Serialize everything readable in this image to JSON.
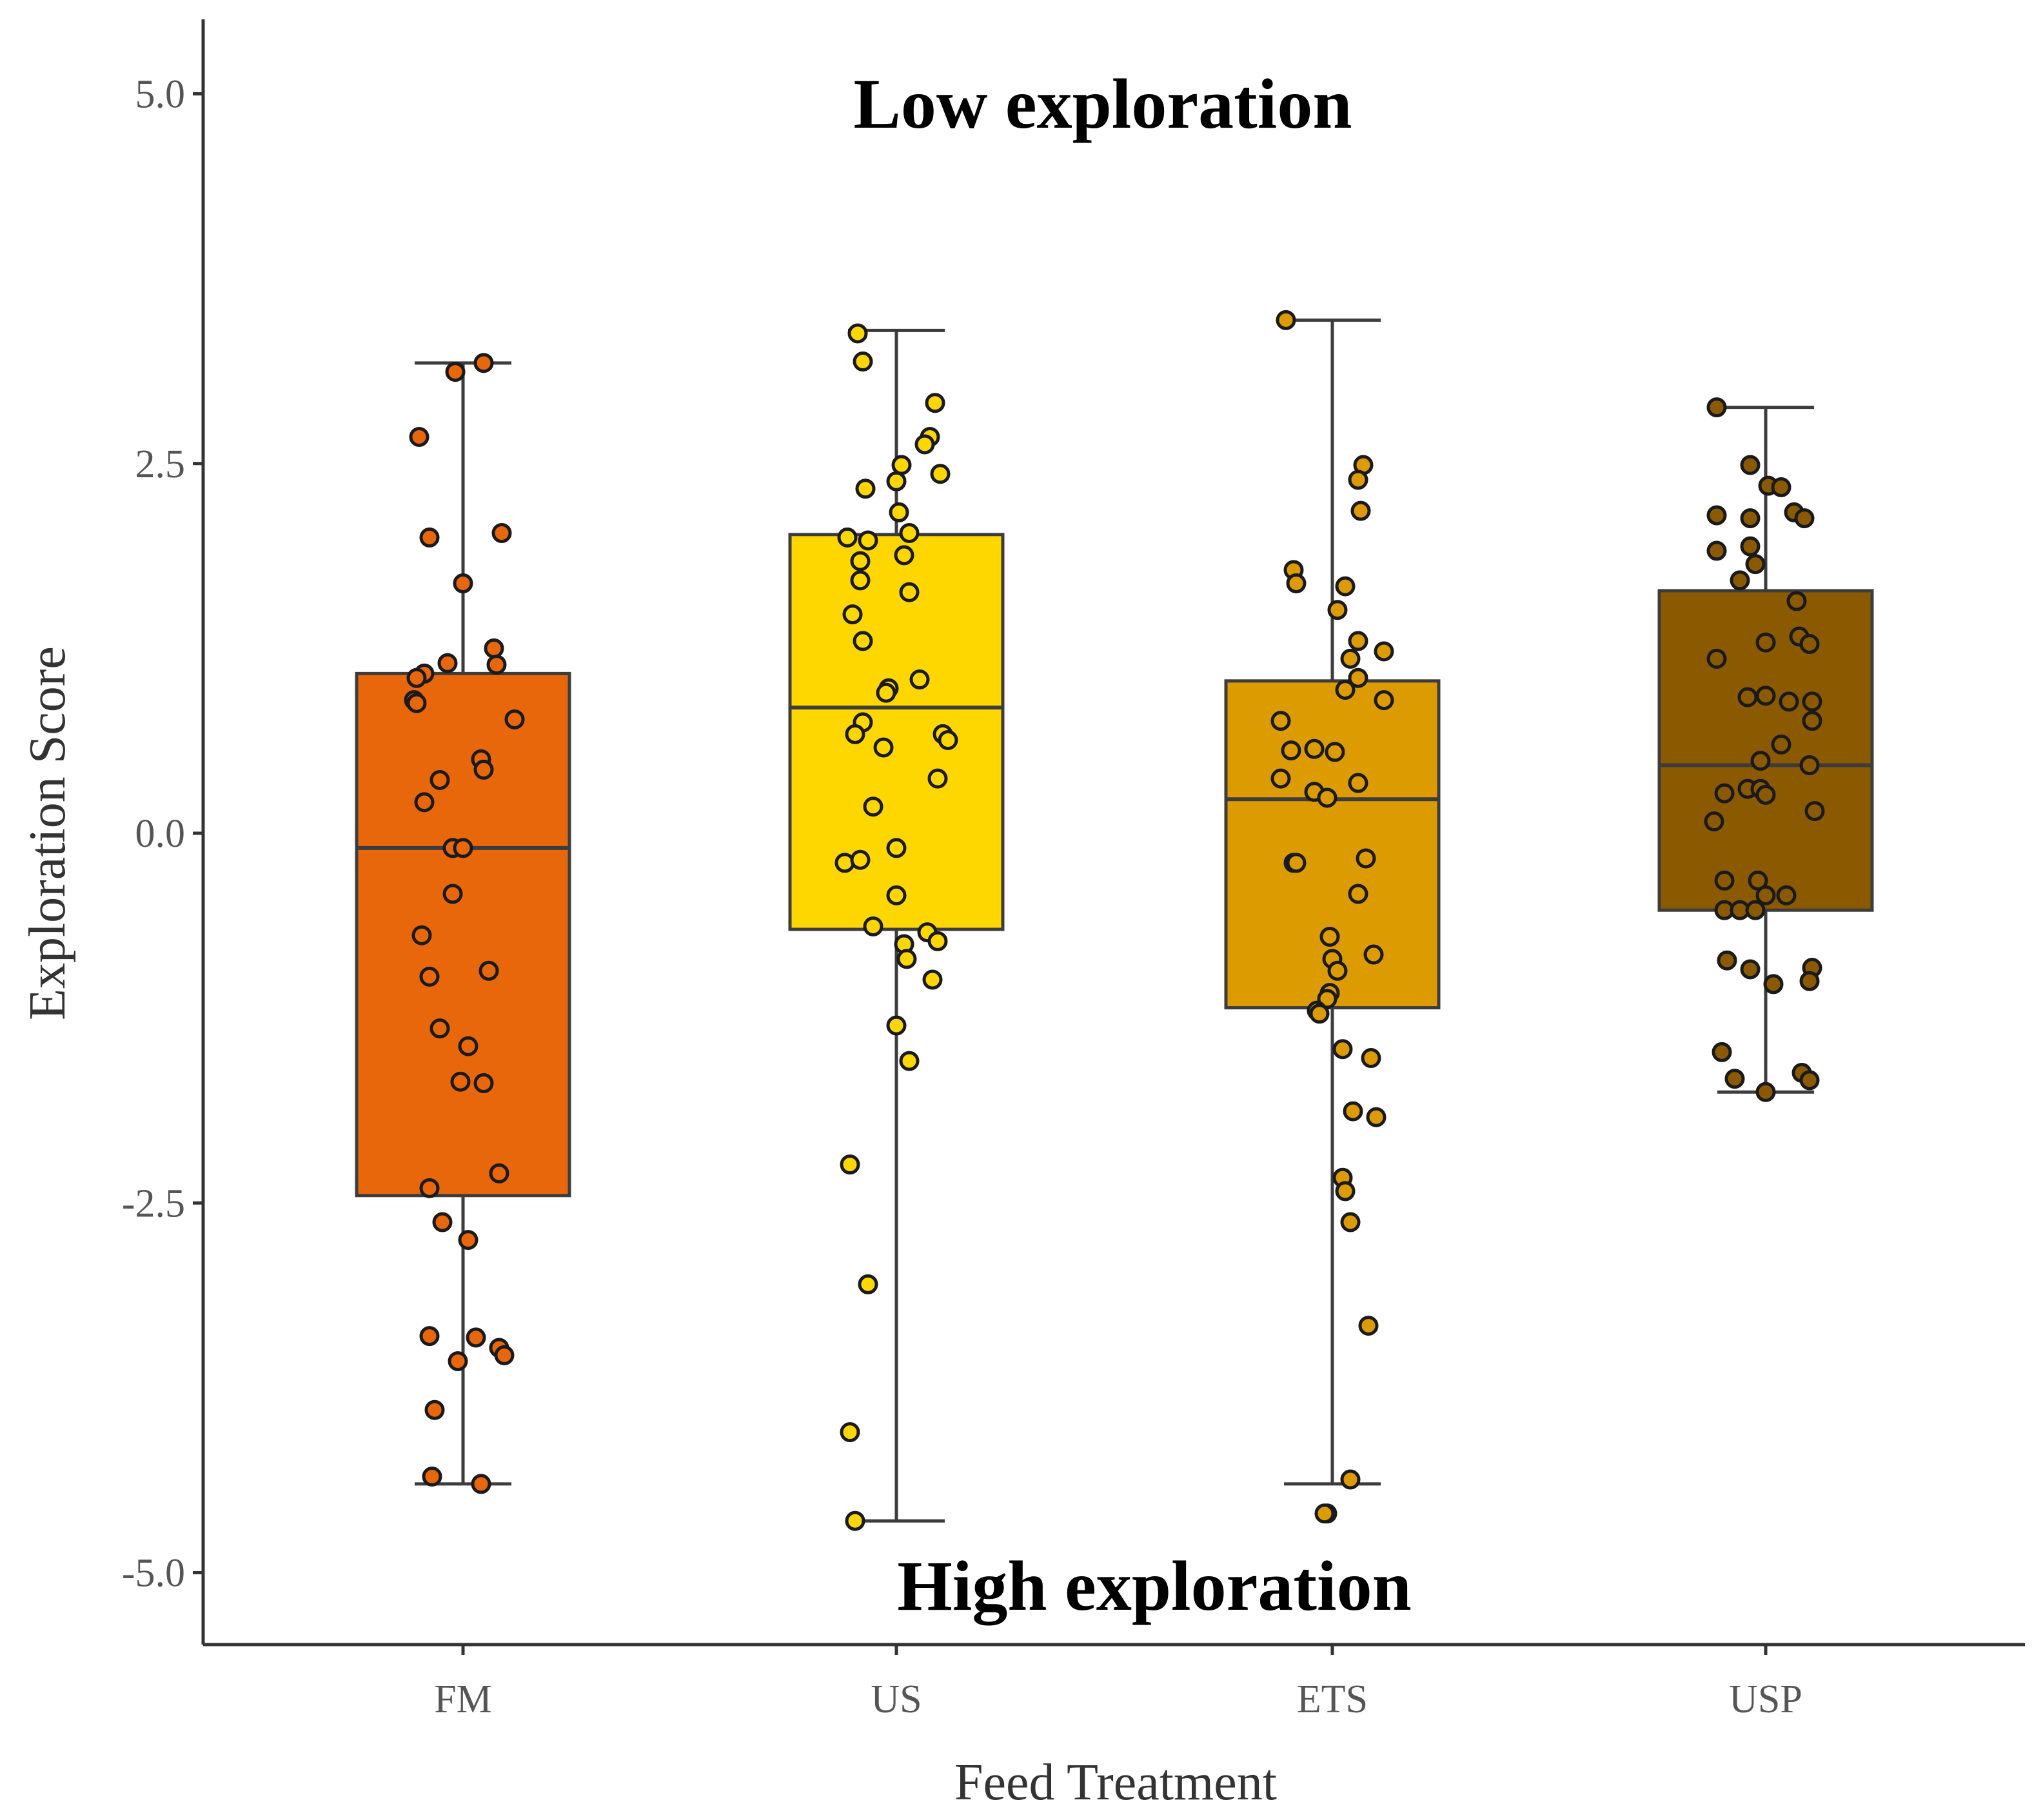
{
  "chart_data": {
    "type": "box",
    "xlabel": "Feed Treatment",
    "ylabel": "Exploration Score",
    "ylim": [
      -5.6,
      5.5
    ],
    "yticks": [
      5.0,
      2.5,
      0.0,
      -2.5,
      -5.0
    ],
    "ytick_labels": [
      "5.0",
      "2.5",
      "0.0",
      "-2.5",
      "-5.0"
    ],
    "annotations": {
      "top": "Low exploration",
      "bottom": "High exploration"
    },
    "colors": {
      "point_edge": "#1a1a1a",
      "box_edge": "#3c3c3c",
      "axis": "#333333"
    },
    "categories": [
      "FM",
      "US",
      "ETS",
      "USP"
    ],
    "series": [
      {
        "name": "FM",
        "color": "#e8670a",
        "whisker_low": -4.4,
        "q1": -2.45,
        "median": -0.1,
        "q3": 1.08,
        "whisker_high": 3.18,
        "points": [
          [
            -0.17,
            2.68
          ],
          [
            -0.03,
            3.12
          ],
          [
            0.08,
            3.18
          ],
          [
            -0.13,
            2.0
          ],
          [
            0.15,
            2.03
          ],
          [
            0.0,
            1.69
          ],
          [
            -0.06,
            1.15
          ],
          [
            -0.15,
            1.08
          ],
          [
            -0.18,
            1.05
          ],
          [
            0.12,
            1.25
          ],
          [
            0.13,
            1.14
          ],
          [
            -0.19,
            0.9
          ],
          [
            -0.18,
            0.88
          ],
          [
            0.2,
            0.77
          ],
          [
            0.07,
            0.5
          ],
          [
            0.08,
            0.43
          ],
          [
            -0.09,
            0.36
          ],
          [
            -0.15,
            0.21
          ],
          [
            -0.04,
            -0.1
          ],
          [
            0.0,
            -0.1
          ],
          [
            -0.04,
            -0.41
          ],
          [
            -0.16,
            -0.69
          ],
          [
            0.1,
            -0.93
          ],
          [
            -0.13,
            -0.97
          ],
          [
            -0.09,
            -1.32
          ],
          [
            0.02,
            -1.44
          ],
          [
            -0.01,
            -1.68
          ],
          [
            0.08,
            -1.69
          ],
          [
            0.14,
            -2.3
          ],
          [
            -0.13,
            -2.4
          ],
          [
            -0.08,
            -2.63
          ],
          [
            0.02,
            -2.75
          ],
          [
            -0.13,
            -3.4
          ],
          [
            0.05,
            -3.41
          ],
          [
            0.14,
            -3.48
          ],
          [
            0.16,
            -3.53
          ],
          [
            -0.02,
            -3.57
          ],
          [
            -0.11,
            -3.9
          ],
          [
            -0.12,
            -4.35
          ],
          [
            0.07,
            -4.4
          ]
        ]
      },
      {
        "name": "US",
        "color": "#ffd700",
        "whisker_low": -4.65,
        "q1": -0.65,
        "median": 0.85,
        "q3": 2.02,
        "whisker_high": 3.4,
        "points": [
          [
            -0.15,
            3.38
          ],
          [
            -0.13,
            3.19
          ],
          [
            0.15,
            2.91
          ],
          [
            0.13,
            2.68
          ],
          [
            0.11,
            2.63
          ],
          [
            0.02,
            2.49
          ],
          [
            0.17,
            2.43
          ],
          [
            0.0,
            2.38
          ],
          [
            -0.12,
            2.33
          ],
          [
            0.01,
            2.17
          ],
          [
            0.05,
            2.03
          ],
          [
            -0.19,
            2.0
          ],
          [
            -0.11,
            1.98
          ],
          [
            0.03,
            1.88
          ],
          [
            -0.14,
            1.84
          ],
          [
            -0.14,
            1.71
          ],
          [
            0.05,
            1.63
          ],
          [
            -0.17,
            1.48
          ],
          [
            -0.13,
            1.3
          ],
          [
            0.09,
            1.04
          ],
          [
            -0.03,
            0.98
          ],
          [
            -0.04,
            0.95
          ],
          [
            -0.13,
            0.75
          ],
          [
            -0.16,
            0.67
          ],
          [
            0.18,
            0.67
          ],
          [
            0.2,
            0.63
          ],
          [
            -0.05,
            0.58
          ],
          [
            0.16,
            0.37
          ],
          [
            -0.09,
            0.18
          ],
          [
            -0.2,
            -0.2
          ],
          [
            -0.14,
            -0.18
          ],
          [
            0.0,
            -0.1
          ],
          [
            0.0,
            -0.42
          ],
          [
            -0.09,
            -0.63
          ],
          [
            0.12,
            -0.67
          ],
          [
            0.16,
            -0.73
          ],
          [
            0.03,
            -0.75
          ],
          [
            0.04,
            -0.85
          ],
          [
            0.14,
            -0.99
          ],
          [
            0.0,
            -1.3
          ],
          [
            0.05,
            -1.54
          ],
          [
            -0.18,
            -2.24
          ],
          [
            -0.11,
            -3.05
          ],
          [
            -0.18,
            -4.05
          ],
          [
            -0.16,
            -4.65
          ]
        ]
      },
      {
        "name": "ETS",
        "color": "#dc9b00",
        "whisker_low": -4.4,
        "q1": -1.18,
        "median": 0.23,
        "q3": 1.03,
        "whisker_high": 3.47,
        "points": [
          [
            -0.18,
            3.47
          ],
          [
            0.12,
            2.49
          ],
          [
            0.1,
            2.39
          ],
          [
            0.11,
            2.18
          ],
          [
            -0.15,
            1.78
          ],
          [
            -0.14,
            1.69
          ],
          [
            0.05,
            1.67
          ],
          [
            0.02,
            1.51
          ],
          [
            0.1,
            1.3
          ],
          [
            0.07,
            1.18
          ],
          [
            0.2,
            1.23
          ],
          [
            0.1,
            1.05
          ],
          [
            0.05,
            0.97
          ],
          [
            0.2,
            0.9
          ],
          [
            -0.2,
            0.76
          ],
          [
            -0.16,
            0.56
          ],
          [
            -0.07,
            0.57
          ],
          [
            0.01,
            0.55
          ],
          [
            -0.2,
            0.37
          ],
          [
            0.1,
            0.34
          ],
          [
            -0.07,
            0.28
          ],
          [
            -0.02,
            0.24
          ],
          [
            -0.15,
            -0.2
          ],
          [
            -0.14,
            -0.2
          ],
          [
            0.13,
            -0.17
          ],
          [
            0.1,
            -0.41
          ],
          [
            -0.01,
            -0.7
          ],
          [
            0.16,
            -0.82
          ],
          [
            0.0,
            -0.85
          ],
          [
            0.02,
            -0.93
          ],
          [
            -0.01,
            -1.08
          ],
          [
            -0.02,
            -1.12
          ],
          [
            -0.06,
            -1.2
          ],
          [
            -0.05,
            -1.22
          ],
          [
            0.04,
            -1.46
          ],
          [
            0.15,
            -1.52
          ],
          [
            0.08,
            -1.88
          ],
          [
            0.17,
            -1.92
          ],
          [
            0.04,
            -2.33
          ],
          [
            0.05,
            -2.42
          ],
          [
            0.07,
            -2.63
          ],
          [
            0.14,
            -3.33
          ],
          [
            0.07,
            -4.37
          ],
          [
            -0.02,
            -4.6
          ],
          [
            -0.03,
            -4.6
          ]
        ]
      },
      {
        "name": "USP",
        "color": "#8b5a00",
        "whisker_low": -1.75,
        "q1": -0.52,
        "median": 0.46,
        "q3": 1.64,
        "whisker_high": 2.88,
        "points": [
          [
            -0.19,
            2.88
          ],
          [
            -0.06,
            2.49
          ],
          [
            0.01,
            2.35
          ],
          [
            0.06,
            2.34
          ],
          [
            -0.19,
            2.15
          ],
          [
            -0.06,
            2.13
          ],
          [
            0.11,
            2.17
          ],
          [
            0.15,
            2.13
          ],
          [
            -0.06,
            1.94
          ],
          [
            -0.19,
            1.91
          ],
          [
            -0.04,
            1.82
          ],
          [
            -0.1,
            1.71
          ],
          [
            0.12,
            1.57
          ],
          [
            0.13,
            1.33
          ],
          [
            0.17,
            1.28
          ],
          [
            0.0,
            1.29
          ],
          [
            -0.19,
            1.18
          ],
          [
            -0.07,
            0.92
          ],
          [
            0.0,
            0.93
          ],
          [
            0.09,
            0.89
          ],
          [
            0.18,
            0.89
          ],
          [
            0.18,
            0.76
          ],
          [
            0.06,
            0.6
          ],
          [
            -0.02,
            0.49
          ],
          [
            0.17,
            0.46
          ],
          [
            -0.07,
            0.3
          ],
          [
            -0.02,
            0.3
          ],
          [
            -0.16,
            0.27
          ],
          [
            0.0,
            0.26
          ],
          [
            -0.2,
            0.08
          ],
          [
            0.19,
            0.15
          ],
          [
            -0.16,
            -0.32
          ],
          [
            -0.03,
            -0.32
          ],
          [
            0.0,
            -0.42
          ],
          [
            0.08,
            -0.42
          ],
          [
            -0.16,
            -0.52
          ],
          [
            -0.1,
            -0.52
          ],
          [
            -0.04,
            -0.52
          ],
          [
            -0.15,
            -0.86
          ],
          [
            -0.06,
            -0.92
          ],
          [
            0.03,
            -1.02
          ],
          [
            0.18,
            -0.91
          ],
          [
            0.17,
            -1.0
          ],
          [
            -0.17,
            -1.48
          ],
          [
            -0.12,
            -1.66
          ],
          [
            0.14,
            -1.62
          ],
          [
            0.17,
            -1.67
          ],
          [
            0.0,
            -1.75
          ]
        ]
      }
    ]
  }
}
